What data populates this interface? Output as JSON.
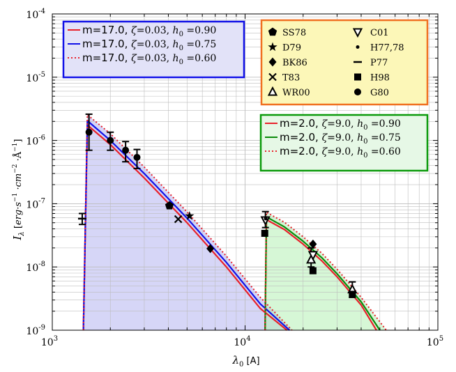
{
  "chart_data": {
    "type": "line",
    "title": "",
    "xlabel": "λ0 [A]",
    "ylabel": "Iλ [erg·s⁻¹·cm⁻²·Å⁻¹]",
    "x_scale": "log",
    "y_scale": "log",
    "xlim": [
      1000,
      100000
    ],
    "ylim": [
      1e-09,
      0.0001
    ],
    "grid": true,
    "x_ticks": [
      {
        "base": "10",
        "exp": "3",
        "value": 1000
      },
      {
        "base": "10",
        "exp": "4",
        "value": 10000
      },
      {
        "base": "10",
        "exp": "5",
        "value": 100000
      }
    ],
    "y_ticks": [
      {
        "base": "10",
        "exp": "-9",
        "value": 1e-09
      },
      {
        "base": "10",
        "exp": "-8",
        "value": 1e-08
      },
      {
        "base": "10",
        "exp": "-7",
        "value": 1e-07
      },
      {
        "base": "10",
        "exp": "-6",
        "value": 1e-06
      },
      {
        "base": "10",
        "exp": "-5",
        "value": 1e-05
      },
      {
        "base": "10",
        "exp": "-4",
        "value": 0.0001
      }
    ],
    "model_series": [
      {
        "name": "m=17.0, ζ=0.03, h0=0.90",
        "color": "#e8202a",
        "dash": "solid",
        "group": "A",
        "x": [
          1450,
          1520,
          2000,
          3000,
          5000,
          8000,
          12000,
          16500
        ],
        "y": [
          1e-09,
          1.75e-06,
          8.6e-07,
          2.55e-07,
          5e-08,
          1e-08,
          2.2e-09,
          7e-10
        ]
      },
      {
        "name": "m=17.0, ζ=0.03, h0=0.75",
        "color": "#1010e8",
        "dash": "solid",
        "group": "A",
        "x": [
          1450,
          1520,
          2000,
          3000,
          5000,
          8000,
          12000,
          17000
        ],
        "y": [
          1e-09,
          2.05e-06,
          1e-06,
          3e-07,
          5.9e-08,
          1.18e-08,
          2.6e-09,
          8e-10
        ]
      },
      {
        "name": "m=17.0, ζ=0.03, h0=0.60",
        "color": "#e8202a",
        "dash": "dotted",
        "group": "A",
        "x": [
          1450,
          1520,
          2000,
          3000,
          5000,
          8000,
          12000,
          17500
        ],
        "y": [
          1e-09,
          2.55e-06,
          1.28e-06,
          3.8e-07,
          7.4e-08,
          1.48e-08,
          3.3e-09,
          9e-10
        ]
      },
      {
        "name": "m=2.0, ζ=9.0, h0=0.90",
        "color": "#e8202a",
        "dash": "solid",
        "group": "B",
        "x": [
          12700,
          12900,
          16000,
          20000,
          25000,
          30000,
          40000,
          48000
        ],
        "y": [
          1e-09,
          5.6e-08,
          3.9e-08,
          2.3e-08,
          1.25e-08,
          7e-09,
          2.5e-09,
          1e-09
        ]
      },
      {
        "name": "m=2.0, ζ=9.0, h0=0.75",
        "color": "#0a8a0a",
        "dash": "solid",
        "group": "B",
        "x": [
          12700,
          12900,
          16000,
          20000,
          25000,
          30000,
          40000,
          50000
        ],
        "y": [
          1e-09,
          6.2e-08,
          4.3e-08,
          2.55e-08,
          1.4e-08,
          7.8e-09,
          2.8e-09,
          1e-09
        ]
      },
      {
        "name": "m=2.0, ζ=9.0, h0=0.60",
        "color": "#e8202a",
        "dash": "dotted",
        "group": "B",
        "x": [
          12700,
          12900,
          16000,
          20000,
          25000,
          30000,
          40000,
          54000
        ],
        "y": [
          1e-09,
          7.3e-08,
          5.1e-08,
          3e-08,
          1.65e-08,
          9.2e-09,
          3.3e-09,
          1e-09
        ]
      }
    ],
    "observations": [
      {
        "name": "SS78",
        "marker": "pentagon",
        "points": [
          {
            "x": 4050,
            "y": 9.3e-08
          }
        ]
      },
      {
        "name": "D79",
        "marker": "star",
        "points": [
          {
            "x": 5150,
            "y": 6.4e-08
          }
        ]
      },
      {
        "name": "BK86",
        "marker": "diamond",
        "points": [
          {
            "x": 6600,
            "y": 1.95e-08
          },
          {
            "x": 22500,
            "y": 2.3e-08
          }
        ]
      },
      {
        "name": "T83",
        "marker": "x",
        "points": [
          {
            "x": 4500,
            "y": 5.7e-08
          }
        ]
      },
      {
        "name": "WR00",
        "marker": "triangle-up",
        "points": [
          {
            "x": 22000,
            "y": 1.3e-08
          },
          {
            "x": 36000,
            "y": 4.4e-09
          }
        ]
      },
      {
        "name": "C01",
        "marker": "triangle-down",
        "points": [
          {
            "x": 12750,
            "y": 5.5e-08
          },
          {
            "x": 22500,
            "y": 1.55e-08
          }
        ]
      },
      {
        "name": "H77,78",
        "marker": "dot",
        "points": [
          {
            "x": 12800,
            "y": 5.8e-08
          }
        ]
      },
      {
        "name": "P77",
        "marker": "dash",
        "points": [
          {
            "x": 1430,
            "y": 5.8e-08
          }
        ]
      },
      {
        "name": "H98",
        "marker": "square",
        "points": [
          {
            "x": 12650,
            "y": 3.4e-08
          },
          {
            "x": 22500,
            "y": 8.7e-09
          },
          {
            "x": 36000,
            "y": 3.7e-09
          }
        ]
      },
      {
        "name": "G80",
        "marker": "circle",
        "points": [
          {
            "x": 1550,
            "y": 1.35e-06
          },
          {
            "x": 2000,
            "y": 1e-06
          },
          {
            "x": 2400,
            "y": 7e-07
          },
          {
            "x": 2750,
            "y": 5.4e-07
          }
        ]
      }
    ],
    "error_bars": [
      {
        "x": 1430,
        "lo": 4.7e-08,
        "hi": 7e-08
      },
      {
        "x": 1550,
        "lo": 7e-07,
        "hi": 2.6e-06
      },
      {
        "x": 2000,
        "lo": 7e-07,
        "hi": 1.35e-06
      },
      {
        "x": 2400,
        "lo": 4.6e-07,
        "hi": 9.6e-07
      },
      {
        "x": 2750,
        "lo": 3.6e-07,
        "hi": 7.2e-07
      },
      {
        "x": 12750,
        "lo": 4.2e-08,
        "hi": 7.5e-08
      },
      {
        "x": 22000,
        "lo": 1e-08,
        "hi": 2e-08
      },
      {
        "x": 36000,
        "lo": 3.3e-09,
        "hi": 5.8e-09
      }
    ],
    "legend_top_left": {
      "entries": [
        {
          "m": "m=17.0, ",
          "zeta": "ζ",
          "zeta_val": "=0.03, ",
          "h": "h",
          "h_sub": "0",
          "h_val": " =0.90",
          "color": "#e8202a",
          "dash": "solid"
        },
        {
          "m": "m=17.0, ",
          "zeta": "ζ",
          "zeta_val": "=0.03, ",
          "h": "h",
          "h_sub": "0",
          "h_val": " =0.75",
          "color": "#1010e8",
          "dash": "solid"
        },
        {
          "m": "m=17.0, ",
          "zeta": "ζ",
          "zeta_val": "=0.03, ",
          "h": "h",
          "h_sub": "0",
          "h_val": " =0.60",
          "color": "#e8202a",
          "dash": "dotted"
        }
      ],
      "border_color": "#1010e8",
      "fill_color": "#e2e2f8"
    },
    "legend_right": {
      "entries": [
        {
          "m": "m=2.0, ",
          "zeta": "ζ",
          "zeta_val": "=9.0, ",
          "h": "h",
          "h_sub": "0",
          "h_val": " =0.90",
          "color": "#e8202a",
          "dash": "solid"
        },
        {
          "m": "m=2.0, ",
          "zeta": "ζ",
          "zeta_val": "=9.0, ",
          "h": "h",
          "h_sub": "0",
          "h_val": " =0.75",
          "color": "#0a8a0a",
          "dash": "solid"
        },
        {
          "m": "m=2.0, ",
          "zeta": "ζ",
          "zeta_val": "=9.0, ",
          "h": "h",
          "h_sub": "0",
          "h_val": " =0.60",
          "color": "#e8202a",
          "dash": "dotted"
        }
      ],
      "border_color": "#0a9a0a",
      "fill_color": "#e6f8e6"
    },
    "legend_markers": {
      "left_column": [
        "SS78",
        "D79",
        "BK86",
        "T83",
        "WR00"
      ],
      "right_column": [
        "C01",
        "H77,78",
        "P77",
        "H98",
        "G80"
      ],
      "border_color": "#f07020",
      "fill_color": "#fcf7b8"
    },
    "fill_regions": [
      {
        "group": "A",
        "color": "#b4b4f0",
        "opacity": 0.55
      },
      {
        "group": "B",
        "color": "#b4f0b4",
        "opacity": 0.55
      }
    ]
  }
}
